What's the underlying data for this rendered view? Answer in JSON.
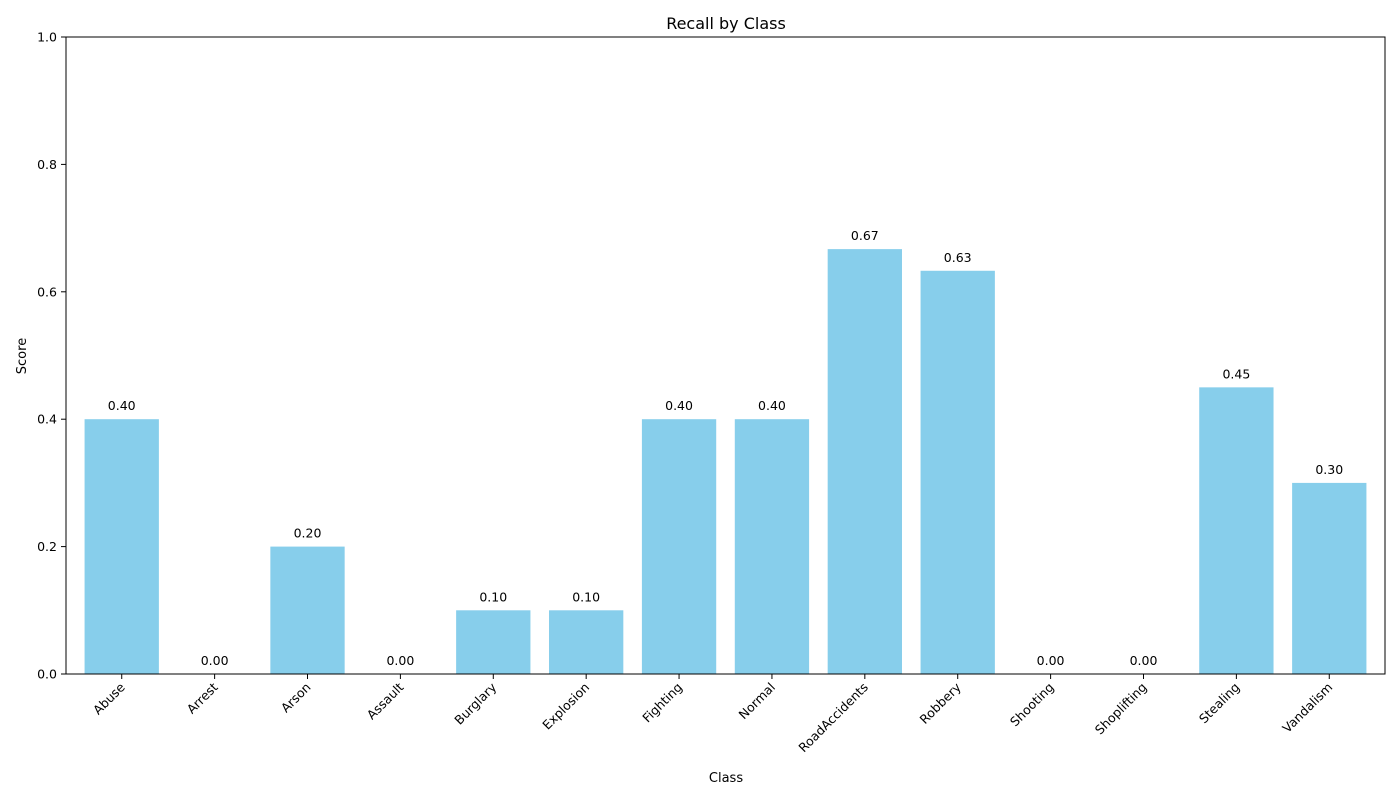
{
  "chart_data": {
    "type": "bar",
    "title": "Recall by Class",
    "xlabel": "Class",
    "ylabel": "Score",
    "ylim": [
      0,
      1.0
    ],
    "yticks": [
      "0.0",
      "0.2",
      "0.4",
      "0.6",
      "0.8",
      "1.0"
    ],
    "ytick_values": [
      0,
      0.2,
      0.4,
      0.6,
      0.8,
      1.0
    ],
    "categories": [
      "Abuse",
      "Arrest",
      "Arson",
      "Assault",
      "Burglary",
      "Explosion",
      "Fighting",
      "Normal",
      "RoadAccidents",
      "Robbery",
      "Shooting",
      "Shoplifting",
      "Stealing",
      "Vandalism"
    ],
    "values": [
      0.4,
      0.0,
      0.2,
      0.0,
      0.1,
      0.1,
      0.4,
      0.4,
      0.667,
      0.633,
      0.0,
      0.0,
      0.45,
      0.3
    ],
    "data_labels": [
      "0.40",
      "0.00",
      "0.20",
      "0.00",
      "0.10",
      "0.10",
      "0.40",
      "0.40",
      "0.67",
      "0.63",
      "0.00",
      "0.00",
      "0.45",
      "0.30"
    ],
    "bar_color": "#87ceeb",
    "grid": false,
    "legend": "none"
  }
}
